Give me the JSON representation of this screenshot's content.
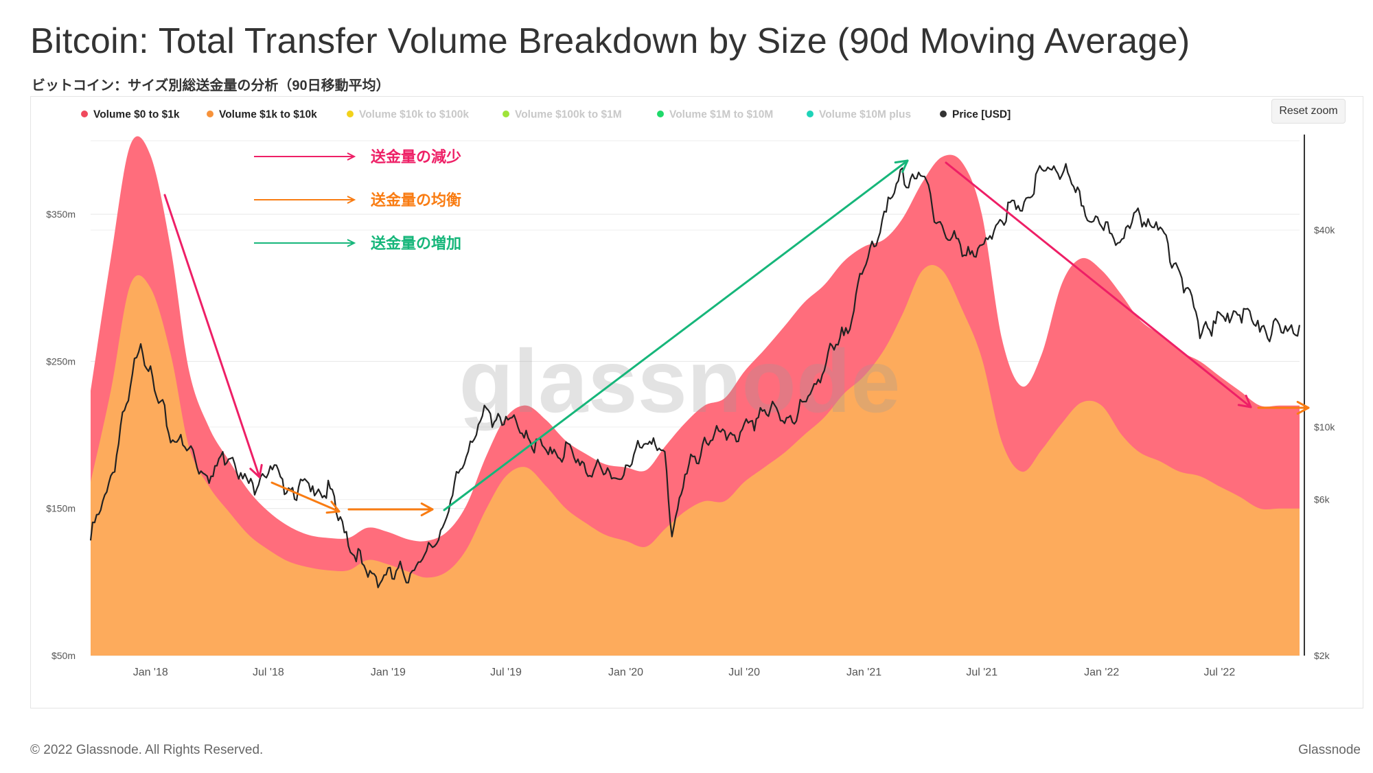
{
  "title": "Bitcoin: Total Transfer Volume Breakdown by Size (90d Moving Average)",
  "subtitle": "ビットコイン：サイズ別総送金量の分析（90日移動平均）",
  "reset_zoom_label": "Reset zoom",
  "watermark": "glassnode",
  "footer": {
    "copyright": "© 2022 Glassnode. All Rights Reserved.",
    "brand": "Glassnode"
  },
  "legend": [
    {
      "label": "Volume $0 to $1k",
      "color": "#f0495d",
      "active": true
    },
    {
      "label": "Volume $1k to $10k",
      "color": "#f7923a",
      "active": true
    },
    {
      "label": "Volume $10k to $100k",
      "color": "#f2d21b",
      "active": false
    },
    {
      "label": "Volume $100k to $1M",
      "color": "#9fe33a",
      "active": false
    },
    {
      "label": "Volume $1M to $10M",
      "color": "#1fd96a",
      "active": false
    },
    {
      "label": "Volume $10M plus",
      "color": "#1ed3b8",
      "active": false
    },
    {
      "label": "Price [USD]",
      "color": "#333333",
      "active": true
    }
  ],
  "annotations": [
    {
      "label": "送金量の減少",
      "color": "#ee1f66"
    },
    {
      "label": "送金量の均衡",
      "color": "#f97c12"
    },
    {
      "label": "送金量の増加",
      "color": "#16b67a"
    }
  ],
  "chart_data": {
    "type": "area",
    "x_tick_labels": [
      "Jan '18",
      "Jul '18",
      "Jan '19",
      "Jul '19",
      "Jan '20",
      "Jul '20",
      "Jan '21",
      "Jul '21",
      "Jan '22",
      "Jul '22"
    ],
    "x_tick_dates": [
      "2018-01-01",
      "2018-07-01",
      "2019-01-01",
      "2019-07-01",
      "2020-01-01",
      "2020-07-01",
      "2021-01-01",
      "2021-07-01",
      "2022-01-01",
      "2022-07-01"
    ],
    "x_range": [
      "2017-10-01",
      "2022-11-01"
    ],
    "y_left": {
      "ticks": [
        "$50m",
        "$150m",
        "$250m",
        "$350m"
      ],
      "tick_values": [
        50,
        150,
        250,
        350
      ],
      "range": [
        50,
        400
      ],
      "unit": "USD millions"
    },
    "y_right": {
      "ticks": [
        "$2k",
        "$6k",
        "$10k",
        "$40k"
      ],
      "tick_values": [
        2000,
        6000,
        10000,
        40000
      ],
      "scale": "log",
      "range": [
        2000,
        75000
      ]
    },
    "stacked": true,
    "series": [
      {
        "name": "Volume $1k to $10k",
        "color": "#fdab5c",
        "axis": "left",
        "x": [
          "2017-10-01",
          "2017-11-01",
          "2017-12-01",
          "2018-01-01",
          "2018-02-01",
          "2018-03-01",
          "2018-04-01",
          "2018-05-01",
          "2018-06-01",
          "2018-07-01",
          "2018-08-01",
          "2018-09-01",
          "2018-10-01",
          "2018-11-01",
          "2018-12-01",
          "2019-01-01",
          "2019-02-01",
          "2019-03-01",
          "2019-04-01",
          "2019-05-01",
          "2019-06-01",
          "2019-07-01",
          "2019-08-01",
          "2019-09-01",
          "2019-10-01",
          "2019-11-01",
          "2019-12-01",
          "2020-01-01",
          "2020-02-01",
          "2020-03-01",
          "2020-04-01",
          "2020-05-01",
          "2020-06-01",
          "2020-07-01",
          "2020-08-01",
          "2020-09-01",
          "2020-10-01",
          "2020-11-01",
          "2020-12-01",
          "2021-01-01",
          "2021-02-01",
          "2021-03-01",
          "2021-04-01",
          "2021-05-01",
          "2021-06-01",
          "2021-07-01",
          "2021-08-01",
          "2021-09-01",
          "2021-10-01",
          "2021-11-01",
          "2021-12-01",
          "2022-01-01",
          "2022-02-01",
          "2022-03-01",
          "2022-04-01",
          "2022-05-01",
          "2022-06-01",
          "2022-07-01",
          "2022-08-01",
          "2022-09-01",
          "2022-10-01",
          "2022-11-01"
        ],
        "values": [
          168,
          230,
          302,
          300,
          255,
          192,
          165,
          148,
          132,
          122,
          114,
          110,
          108,
          108,
          115,
          112,
          107,
          103,
          107,
          122,
          150,
          172,
          178,
          165,
          150,
          140,
          132,
          128,
          124,
          136,
          148,
          155,
          155,
          168,
          178,
          188,
          200,
          212,
          228,
          240,
          258,
          282,
          312,
          312,
          285,
          252,
          195,
          175,
          190,
          208,
          222,
          220,
          200,
          188,
          182,
          175,
          172,
          165,
          158,
          150,
          150,
          150
        ]
      },
      {
        "name": "Volume $0 to $1k",
        "color": "#ff6d7c",
        "axis": "left",
        "x": [
          "2017-10-01",
          "2017-11-01",
          "2017-12-01",
          "2018-01-01",
          "2018-02-01",
          "2018-03-01",
          "2018-04-01",
          "2018-05-01",
          "2018-06-01",
          "2018-07-01",
          "2018-08-01",
          "2018-09-01",
          "2018-10-01",
          "2018-11-01",
          "2018-12-01",
          "2019-01-01",
          "2019-02-01",
          "2019-03-01",
          "2019-04-01",
          "2019-05-01",
          "2019-06-01",
          "2019-07-01",
          "2019-08-01",
          "2019-09-01",
          "2019-10-01",
          "2019-11-01",
          "2019-12-01",
          "2020-01-01",
          "2020-02-01",
          "2020-03-01",
          "2020-04-01",
          "2020-05-01",
          "2020-06-01",
          "2020-07-01",
          "2020-08-01",
          "2020-09-01",
          "2020-10-01",
          "2020-11-01",
          "2020-12-01",
          "2021-01-01",
          "2021-02-01",
          "2021-03-01",
          "2021-04-01",
          "2021-05-01",
          "2021-06-01",
          "2021-07-01",
          "2021-08-01",
          "2021-09-01",
          "2021-10-01",
          "2021-11-01",
          "2021-12-01",
          "2022-01-01",
          "2022-02-01",
          "2022-03-01",
          "2022-04-01",
          "2022-05-01",
          "2022-06-01",
          "2022-07-01",
          "2022-08-01",
          "2022-09-01",
          "2022-10-01",
          "2022-11-01"
        ],
        "values": [
          62,
          90,
          95,
          90,
          72,
          52,
          40,
          35,
          30,
          26,
          24,
          22,
          22,
          22,
          22,
          22,
          22,
          25,
          27,
          30,
          36,
          40,
          42,
          45,
          46,
          47,
          48,
          50,
          52,
          56,
          60,
          65,
          70,
          75,
          80,
          86,
          90,
          90,
          90,
          88,
          75,
          65,
          60,
          77,
          100,
          98,
          70,
          58,
          65,
          95,
          98,
          92,
          95,
          90,
          86,
          82,
          78,
          75,
          72,
          70,
          70,
          70
        ]
      },
      {
        "name": "Price [USD]",
        "color": "#222222",
        "axis": "right",
        "x": [
          "2017-10-01",
          "2017-11-01",
          "2017-12-01",
          "2017-12-17",
          "2018-01-01",
          "2018-02-01",
          "2018-03-01",
          "2018-04-01",
          "2018-05-01",
          "2018-06-01",
          "2018-07-01",
          "2018-08-01",
          "2018-09-01",
          "2018-10-01",
          "2018-11-01",
          "2018-12-01",
          "2019-01-01",
          "2019-02-01",
          "2019-03-01",
          "2019-04-01",
          "2019-05-01",
          "2019-06-01",
          "2019-07-01",
          "2019-08-01",
          "2019-09-01",
          "2019-10-01",
          "2019-11-01",
          "2019-12-01",
          "2020-01-01",
          "2020-02-01",
          "2020-03-01",
          "2020-03-12",
          "2020-04-01",
          "2020-05-01",
          "2020-06-01",
          "2020-07-01",
          "2020-08-01",
          "2020-09-01",
          "2020-10-01",
          "2020-11-01",
          "2020-12-01",
          "2021-01-01",
          "2021-02-01",
          "2021-03-01",
          "2021-04-01",
          "2021-05-01",
          "2021-06-01",
          "2021-07-01",
          "2021-08-01",
          "2021-09-01",
          "2021-10-01",
          "2021-11-01",
          "2021-12-01",
          "2022-01-01",
          "2022-02-01",
          "2022-03-01",
          "2022-04-01",
          "2022-05-01",
          "2022-06-01",
          "2022-07-01",
          "2022-08-01",
          "2022-09-01",
          "2022-10-01",
          "2022-11-01"
        ],
        "values": [
          4500,
          7000,
          13000,
          19000,
          14000,
          9500,
          8500,
          7000,
          8500,
          6500,
          7500,
          6500,
          6500,
          6400,
          4500,
          3500,
          3500,
          3600,
          4000,
          5300,
          8500,
          11000,
          10500,
          9500,
          8300,
          8500,
          7500,
          7200,
          7200,
          9500,
          8000,
          4800,
          7000,
          9000,
          9500,
          9500,
          11500,
          10500,
          11500,
          15500,
          19000,
          30000,
          45000,
          58000,
          58000,
          40000,
          35000,
          34000,
          45000,
          47000,
          60000,
          62000,
          48000,
          40000,
          38000,
          45000,
          40000,
          30000,
          20000,
          21000,
          23000,
          20000,
          19500,
          20500
        ]
      }
    ]
  }
}
